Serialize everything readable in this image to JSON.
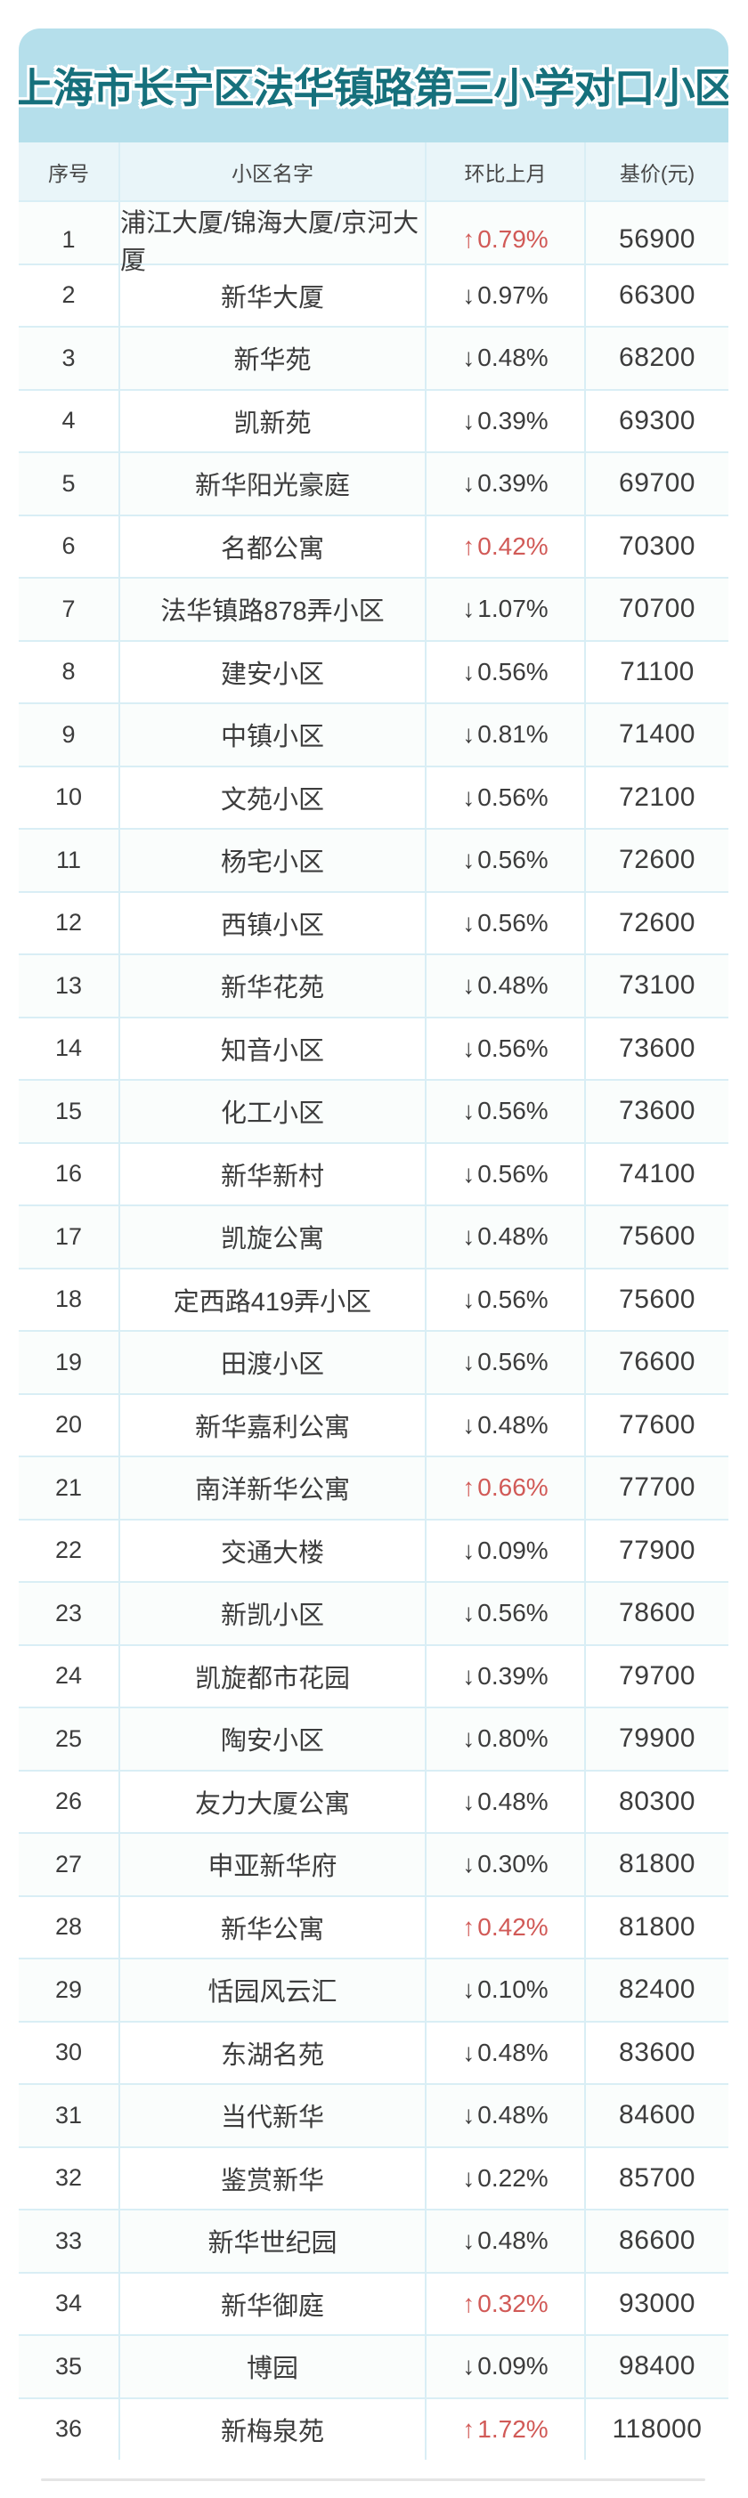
{
  "title": "上海市长宁区法华镇路第三小学对口小区",
  "table": {
    "headers": {
      "no": "序号",
      "name": "小区名字",
      "change": "环比上月",
      "price": "基价(元)"
    }
  },
  "chart_data": {
    "type": "table",
    "title": "上海市长宁区法华镇路第三小学对口小区",
    "columns": [
      "序号",
      "小区名字",
      "环比上月",
      "基价(元)"
    ],
    "rows": [
      {
        "no": "1",
        "name": "浦江大厦/锦海大厦/京河大厦",
        "direction": "up",
        "change": "0.79%",
        "price": "56900"
      },
      {
        "no": "2",
        "name": "新华大厦",
        "direction": "down",
        "change": "0.97%",
        "price": "66300"
      },
      {
        "no": "3",
        "name": "新华苑",
        "direction": "down",
        "change": "0.48%",
        "price": "68200"
      },
      {
        "no": "4",
        "name": "凯新苑",
        "direction": "down",
        "change": "0.39%",
        "price": "69300"
      },
      {
        "no": "5",
        "name": "新华阳光豪庭",
        "direction": "down",
        "change": "0.39%",
        "price": "69700"
      },
      {
        "no": "6",
        "name": "名都公寓",
        "direction": "up",
        "change": "0.42%",
        "price": "70300"
      },
      {
        "no": "7",
        "name": "法华镇路878弄小区",
        "direction": "down",
        "change": "1.07%",
        "price": "70700"
      },
      {
        "no": "8",
        "name": "建安小区",
        "direction": "down",
        "change": "0.56%",
        "price": "71100"
      },
      {
        "no": "9",
        "name": "中镇小区",
        "direction": "down",
        "change": "0.81%",
        "price": "71400"
      },
      {
        "no": "10",
        "name": "文苑小区",
        "direction": "down",
        "change": "0.56%",
        "price": "72100"
      },
      {
        "no": "11",
        "name": "杨宅小区",
        "direction": "down",
        "change": "0.56%",
        "price": "72600"
      },
      {
        "no": "12",
        "name": "西镇小区",
        "direction": "down",
        "change": "0.56%",
        "price": "72600"
      },
      {
        "no": "13",
        "name": "新华花苑",
        "direction": "down",
        "change": "0.48%",
        "price": "73100"
      },
      {
        "no": "14",
        "name": "知音小区",
        "direction": "down",
        "change": "0.56%",
        "price": "73600"
      },
      {
        "no": "15",
        "name": "化工小区",
        "direction": "down",
        "change": "0.56%",
        "price": "73600"
      },
      {
        "no": "16",
        "name": "新华新村",
        "direction": "down",
        "change": "0.56%",
        "price": "74100"
      },
      {
        "no": "17",
        "name": "凯旋公寓",
        "direction": "down",
        "change": "0.48%",
        "price": "75600"
      },
      {
        "no": "18",
        "name": "定西路419弄小区",
        "direction": "down",
        "change": "0.56%",
        "price": "75600"
      },
      {
        "no": "19",
        "name": "田渡小区",
        "direction": "down",
        "change": "0.56%",
        "price": "76600"
      },
      {
        "no": "20",
        "name": "新华嘉利公寓",
        "direction": "down",
        "change": "0.48%",
        "price": "77600"
      },
      {
        "no": "21",
        "name": "南洋新华公寓",
        "direction": "up",
        "change": "0.66%",
        "price": "77700"
      },
      {
        "no": "22",
        "name": "交通大楼",
        "direction": "down",
        "change": "0.09%",
        "price": "77900"
      },
      {
        "no": "23",
        "name": "新凯小区",
        "direction": "down",
        "change": "0.56%",
        "price": "78600"
      },
      {
        "no": "24",
        "name": "凯旋都市花园",
        "direction": "down",
        "change": "0.39%",
        "price": "79700"
      },
      {
        "no": "25",
        "name": "陶安小区",
        "direction": "down",
        "change": "0.80%",
        "price": "79900"
      },
      {
        "no": "26",
        "name": "友力大厦公寓",
        "direction": "down",
        "change": "0.48%",
        "price": "80300"
      },
      {
        "no": "27",
        "name": "申亚新华府",
        "direction": "down",
        "change": "0.30%",
        "price": "81800"
      },
      {
        "no": "28",
        "name": "新华公寓",
        "direction": "up",
        "change": "0.42%",
        "price": "81800"
      },
      {
        "no": "29",
        "name": "恬园风云汇",
        "direction": "down",
        "change": "0.10%",
        "price": "82400"
      },
      {
        "no": "30",
        "name": "东湖名苑",
        "direction": "down",
        "change": "0.48%",
        "price": "83600"
      },
      {
        "no": "31",
        "name": "当代新华",
        "direction": "down",
        "change": "0.48%",
        "price": "84600"
      },
      {
        "no": "32",
        "name": "鉴赏新华",
        "direction": "down",
        "change": "0.22%",
        "price": "85700"
      },
      {
        "no": "33",
        "name": "新华世纪园",
        "direction": "down",
        "change": "0.48%",
        "price": "86600"
      },
      {
        "no": "34",
        "name": "新华御庭",
        "direction": "up",
        "change": "0.32%",
        "price": "93000"
      },
      {
        "no": "35",
        "name": "博园",
        "direction": "down",
        "change": "0.09%",
        "price": "98400"
      },
      {
        "no": "36",
        "name": "新梅泉苑",
        "direction": "up",
        "change": "1.72%",
        "price": "118000"
      }
    ]
  },
  "icons": {
    "arrow_up": "↑",
    "arrow_down": "↓"
  },
  "colors": {
    "title_bg": "#b5dfeb",
    "title_text": "#16707c",
    "header_bg": "#e9f5f9",
    "grid_line": "#d9eef5",
    "up_red": "#d15a57",
    "text": "#3c3c3c"
  }
}
